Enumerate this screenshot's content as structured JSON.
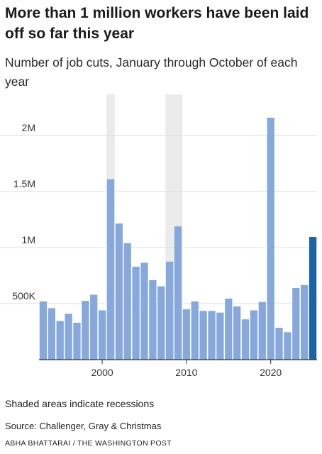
{
  "title": "More than 1 million workers have been laid off so far this year",
  "subtitle": "Number of job cuts, January through October of each year",
  "note": "Shaded areas indicate recessions",
  "source": "Source: Challenger, Gray & Christmas",
  "credit": "ABHA BHATTARAI / THE WASHINGTON POST",
  "chart_data": {
    "type": "bar",
    "title": "More than 1 million workers have been laid off so far this year",
    "subtitle": "Number of job cuts, January through October of each year",
    "xlabel": "",
    "ylabel": "",
    "categories": [
      1993,
      1994,
      1995,
      1996,
      1997,
      1998,
      1999,
      2000,
      2001,
      2002,
      2003,
      2004,
      2005,
      2006,
      2007,
      2008,
      2009,
      2010,
      2011,
      2012,
      2013,
      2014,
      2015,
      2016,
      2017,
      2018,
      2019,
      2020,
      2021,
      2022,
      2023,
      2024,
      2025
    ],
    "values": [
      520000,
      460000,
      345000,
      410000,
      330000,
      525000,
      580000,
      440000,
      1610000,
      1215000,
      1040000,
      830000,
      865000,
      710000,
      655000,
      875000,
      1190000,
      450000,
      520000,
      435000,
      435000,
      420000,
      545000,
      475000,
      360000,
      440000,
      515000,
      2160000,
      285000,
      245000,
      640000,
      665000,
      1095000
    ],
    "highlight_index": 32,
    "colors": {
      "bar": "#86a8dc",
      "highlight": "#1a62aa",
      "recession": "#ebebeb",
      "grid": "#dddddd",
      "axis": "#333333"
    },
    "ylim": [
      0,
      2400000
    ],
    "yticks": [
      500000,
      1000000,
      1500000,
      2000000
    ],
    "ytick_labels": [
      "500K",
      "1M",
      "1.5M",
      "2M"
    ],
    "xticks": [
      2000,
      2010,
      2020
    ],
    "xtick_labels": [
      "2000",
      "2010",
      "2020"
    ],
    "recessions": [
      [
        2001,
        2001
      ],
      [
        2008,
        2009
      ]
    ],
    "grid": true,
    "legend": "none"
  }
}
